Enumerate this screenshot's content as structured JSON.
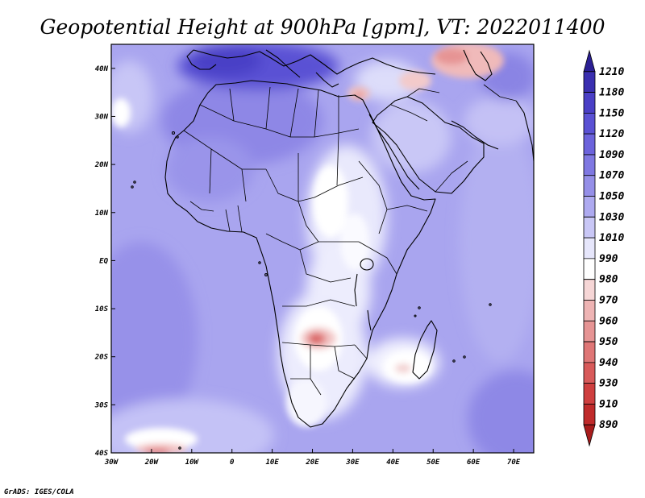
{
  "title": "Geopotential Height at 900hPa [gpm], VT: 2022011400",
  "credit": "GrADS: IGES/COLA",
  "map": {
    "lon_range": [
      -30,
      75
    ],
    "lat_range": [
      -40,
      45
    ],
    "lon_ticks": [
      "30W",
      "20W",
      "10W",
      "0",
      "10E",
      "20E",
      "30E",
      "40E",
      "50E",
      "60E",
      "70E"
    ],
    "lat_ticks": [
      "40N",
      "30N",
      "20N",
      "10N",
      "EQ",
      "10S",
      "20S",
      "30S",
      "40S"
    ]
  },
  "colorbar": {
    "levels": [
      "1210",
      "1180",
      "1150",
      "1120",
      "1090",
      "1070",
      "1050",
      "1030",
      "1010",
      "990",
      "980",
      "970",
      "960",
      "950",
      "940",
      "930",
      "910",
      "890"
    ],
    "colors": [
      "#2b1f94",
      "#3a2fb0",
      "#4a3fc6",
      "#5a51d4",
      "#6c63dc",
      "#7f78e2",
      "#958fe8",
      "#aeaaf0",
      "#c9c7f6",
      "#e6e6fb",
      "#ffffff",
      "#f6d6d6",
      "#eeb4b4",
      "#e69494",
      "#df7676",
      "#d85a5a",
      "#cf3f3f",
      "#c02b2b",
      "#a81c1c"
    ]
  }
}
